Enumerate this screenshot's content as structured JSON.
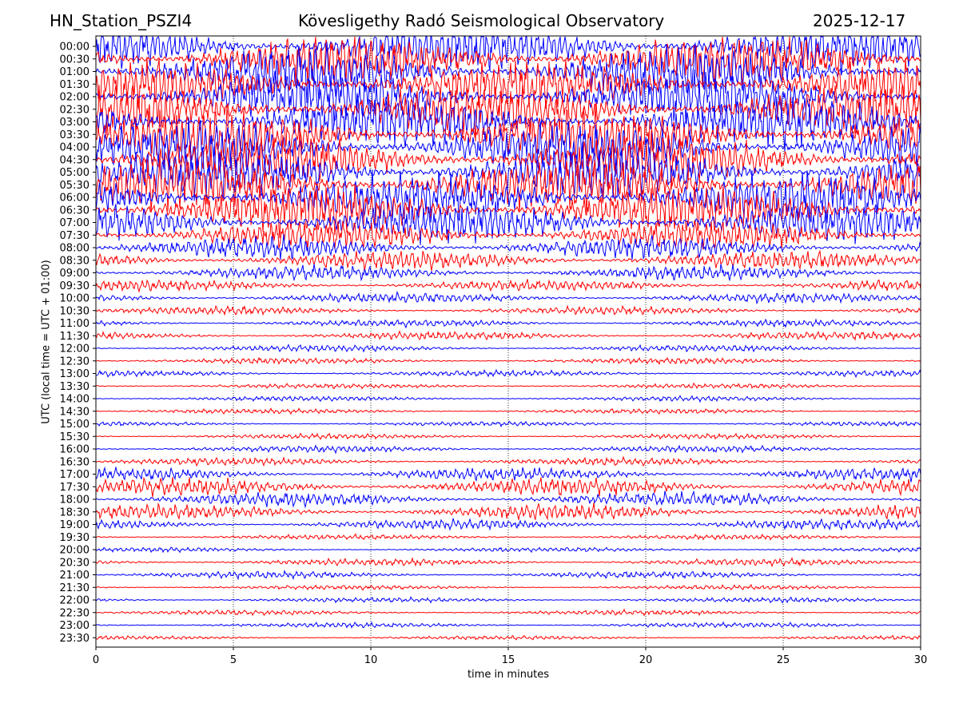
{
  "header": {
    "station": "HN_Station_PSZI4",
    "observatory": "Kövesligethy Radó Seismological Observatory",
    "date": "2025-12-17"
  },
  "chart_data": {
    "type": "line",
    "subtype": "helicorder",
    "xlabel": "time in minutes",
    "ylabel": "UTC (local time = UTC + 01:00)",
    "xlim": [
      0,
      30
    ],
    "x_ticks": [
      "0",
      "5",
      "10",
      "15",
      "20",
      "25",
      "30"
    ],
    "vertical_gridlines_at": [
      5,
      10,
      15,
      20,
      25
    ],
    "trace_colors": [
      "#0000ff",
      "#ff0000"
    ],
    "rows": [
      {
        "label": "00:00",
        "amplitude": 1.0
      },
      {
        "label": "00:30",
        "amplitude": 1.0
      },
      {
        "label": "01:00",
        "amplitude": 1.0
      },
      {
        "label": "01:30",
        "amplitude": 1.0
      },
      {
        "label": "02:00",
        "amplitude": 1.0
      },
      {
        "label": "02:30",
        "amplitude": 1.0
      },
      {
        "label": "03:00",
        "amplitude": 1.0
      },
      {
        "label": "03:30",
        "amplitude": 1.0
      },
      {
        "label": "04:00",
        "amplitude": 1.0
      },
      {
        "label": "04:30",
        "amplitude": 1.0
      },
      {
        "label": "05:00",
        "amplitude": 1.0
      },
      {
        "label": "05:30",
        "amplitude": 1.0
      },
      {
        "label": "06:00",
        "amplitude": 1.0
      },
      {
        "label": "06:30",
        "amplitude": 0.95
      },
      {
        "label": "07:00",
        "amplitude": 0.8
      },
      {
        "label": "07:30",
        "amplitude": 0.6
      },
      {
        "label": "08:00",
        "amplitude": 0.45
      },
      {
        "label": "08:30",
        "amplitude": 0.38
      },
      {
        "label": "09:00",
        "amplitude": 0.3
      },
      {
        "label": "09:30",
        "amplitude": 0.22
      },
      {
        "label": "10:00",
        "amplitude": 0.2
      },
      {
        "label": "10:30",
        "amplitude": 0.16
      },
      {
        "label": "11:00",
        "amplitude": 0.14
      },
      {
        "label": "11:30",
        "amplitude": 0.16
      },
      {
        "label": "12:00",
        "amplitude": 0.13
      },
      {
        "label": "12:30",
        "amplitude": 0.12
      },
      {
        "label": "13:00",
        "amplitude": 0.12
      },
      {
        "label": "13:30",
        "amplitude": 0.1
      },
      {
        "label": "14:00",
        "amplitude": 0.1
      },
      {
        "label": "14:30",
        "amplitude": 0.1
      },
      {
        "label": "15:00",
        "amplitude": 0.09
      },
      {
        "label": "15:30",
        "amplitude": 0.1
      },
      {
        "label": "16:00",
        "amplitude": 0.13
      },
      {
        "label": "16:30",
        "amplitude": 0.15
      },
      {
        "label": "17:00",
        "amplitude": 0.25
      },
      {
        "label": "17:30",
        "amplitude": 0.35
      },
      {
        "label": "18:00",
        "amplitude": 0.28
      },
      {
        "label": "18:30",
        "amplitude": 0.3
      },
      {
        "label": "19:00",
        "amplitude": 0.2
      },
      {
        "label": "19:30",
        "amplitude": 0.1
      },
      {
        "label": "20:00",
        "amplitude": 0.09
      },
      {
        "label": "20:30",
        "amplitude": 0.14
      },
      {
        "label": "21:00",
        "amplitude": 0.14
      },
      {
        "label": "21:30",
        "amplitude": 0.09
      },
      {
        "label": "22:00",
        "amplitude": 0.1
      },
      {
        "label": "22:30",
        "amplitude": 0.1
      },
      {
        "label": "23:00",
        "amplitude": 0.1
      },
      {
        "label": "23:30",
        "amplitude": 0.08
      }
    ]
  }
}
